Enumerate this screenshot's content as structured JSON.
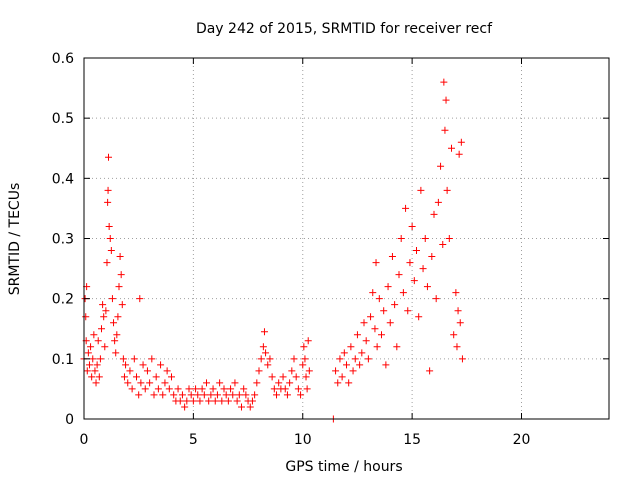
{
  "chart_data": {
    "type": "scatter",
    "title": "Day 242 of 2015, SRMTID for receiver recf",
    "xlabel": "GPS time / hours",
    "ylabel": "SRMTID / TECUs",
    "xlim": [
      0,
      24
    ],
    "ylim": [
      0,
      0.6
    ],
    "xticks": [
      0,
      5,
      10,
      15,
      20
    ],
    "yticks": [
      0,
      0.1,
      0.2,
      0.3,
      0.4,
      0.5,
      0.6
    ],
    "x_tick_labels": [
      "0",
      "5",
      "10",
      "15",
      "20"
    ],
    "y_tick_labels": [
      "0",
      "0.1",
      "0.2",
      "0.3",
      "0.4",
      "0.5",
      "0.6"
    ],
    "grid": true,
    "marker": "+",
    "color": "#ff0000",
    "series": [
      {
        "name": "SRMTID",
        "points": [
          [
            0.0,
            0.1
          ],
          [
            0.05,
            0.2
          ],
          [
            0.08,
            0.17
          ],
          [
            0.1,
            0.13
          ],
          [
            0.12,
            0.22
          ],
          [
            0.15,
            0.08
          ],
          [
            0.2,
            0.11
          ],
          [
            0.25,
            0.09
          ],
          [
            0.3,
            0.12
          ],
          [
            0.35,
            0.07
          ],
          [
            0.4,
            0.1
          ],
          [
            0.45,
            0.14
          ],
          [
            0.5,
            0.08
          ],
          [
            0.55,
            0.06
          ],
          [
            0.6,
            0.09
          ],
          [
            0.65,
            0.13
          ],
          [
            0.7,
            0.07
          ],
          [
            0.75,
            0.1
          ],
          [
            0.8,
            0.15
          ],
          [
            0.85,
            0.19
          ],
          [
            0.9,
            0.17
          ],
          [
            0.95,
            0.12
          ],
          [
            1.0,
            0.18
          ],
          [
            1.05,
            0.26
          ],
          [
            1.08,
            0.36
          ],
          [
            1.1,
            0.38
          ],
          [
            1.12,
            0.435
          ],
          [
            1.15,
            0.32
          ],
          [
            1.2,
            0.3
          ],
          [
            1.25,
            0.28
          ],
          [
            1.3,
            0.2
          ],
          [
            1.35,
            0.16
          ],
          [
            1.4,
            0.13
          ],
          [
            1.45,
            0.11
          ],
          [
            1.5,
            0.14
          ],
          [
            1.55,
            0.17
          ],
          [
            1.6,
            0.22
          ],
          [
            1.65,
            0.27
          ],
          [
            1.7,
            0.24
          ],
          [
            1.75,
            0.19
          ],
          [
            1.8,
            0.1
          ],
          [
            1.85,
            0.07
          ],
          [
            1.9,
            0.09
          ],
          [
            2.0,
            0.06
          ],
          [
            2.1,
            0.08
          ],
          [
            2.2,
            0.05
          ],
          [
            2.3,
            0.1
          ],
          [
            2.4,
            0.07
          ],
          [
            2.5,
            0.04
          ],
          [
            2.55,
            0.2
          ],
          [
            2.6,
            0.06
          ],
          [
            2.7,
            0.09
          ],
          [
            2.8,
            0.05
          ],
          [
            2.9,
            0.08
          ],
          [
            3.0,
            0.06
          ],
          [
            3.1,
            0.1
          ],
          [
            3.2,
            0.04
          ],
          [
            3.3,
            0.07
          ],
          [
            3.4,
            0.05
          ],
          [
            3.5,
            0.09
          ],
          [
            3.6,
            0.04
          ],
          [
            3.7,
            0.06
          ],
          [
            3.8,
            0.08
          ],
          [
            3.9,
            0.05
          ],
          [
            4.0,
            0.07
          ],
          [
            4.1,
            0.04
          ],
          [
            4.2,
            0.03
          ],
          [
            4.3,
            0.05
          ],
          [
            4.4,
            0.03
          ],
          [
            4.5,
            0.04
          ],
          [
            4.6,
            0.02
          ],
          [
            4.7,
            0.03
          ],
          [
            4.8,
            0.05
          ],
          [
            4.9,
            0.04
          ],
          [
            5.0,
            0.03
          ],
          [
            5.1,
            0.05
          ],
          [
            5.2,
            0.04
          ],
          [
            5.3,
            0.03
          ],
          [
            5.4,
            0.05
          ],
          [
            5.5,
            0.04
          ],
          [
            5.6,
            0.06
          ],
          [
            5.7,
            0.03
          ],
          [
            5.8,
            0.04
          ],
          [
            5.9,
            0.05
          ],
          [
            6.0,
            0.03
          ],
          [
            6.1,
            0.04
          ],
          [
            6.2,
            0.06
          ],
          [
            6.3,
            0.03
          ],
          [
            6.4,
            0.05
          ],
          [
            6.5,
            0.04
          ],
          [
            6.6,
            0.03
          ],
          [
            6.7,
            0.05
          ],
          [
            6.8,
            0.04
          ],
          [
            6.9,
            0.06
          ],
          [
            7.0,
            0.03
          ],
          [
            7.1,
            0.04
          ],
          [
            7.2,
            0.02
          ],
          [
            7.3,
            0.05
          ],
          [
            7.4,
            0.04
          ],
          [
            7.5,
            0.03
          ],
          [
            7.6,
            0.02
          ],
          [
            7.7,
            0.03
          ],
          [
            7.8,
            0.04
          ],
          [
            7.9,
            0.06
          ],
          [
            8.0,
            0.08
          ],
          [
            8.1,
            0.1
          ],
          [
            8.2,
            0.12
          ],
          [
            8.25,
            0.145
          ],
          [
            8.3,
            0.11
          ],
          [
            8.4,
            0.09
          ],
          [
            8.5,
            0.1
          ],
          [
            8.6,
            0.07
          ],
          [
            8.7,
            0.05
          ],
          [
            8.8,
            0.04
          ],
          [
            8.9,
            0.06
          ],
          [
            9.0,
            0.05
          ],
          [
            9.1,
            0.07
          ],
          [
            9.2,
            0.05
          ],
          [
            9.3,
            0.04
          ],
          [
            9.4,
            0.06
          ],
          [
            9.5,
            0.08
          ],
          [
            9.6,
            0.1
          ],
          [
            9.7,
            0.07
          ],
          [
            9.8,
            0.05
          ],
          [
            9.9,
            0.04
          ],
          [
            10.0,
            0.09
          ],
          [
            10.05,
            0.12
          ],
          [
            10.1,
            0.1
          ],
          [
            10.15,
            0.07
          ],
          [
            10.2,
            0.05
          ],
          [
            10.25,
            0.13
          ],
          [
            10.3,
            0.08
          ],
          [
            11.4,
            0.0
          ],
          [
            11.5,
            0.08
          ],
          [
            11.6,
            0.06
          ],
          [
            11.7,
            0.1
          ],
          [
            11.8,
            0.07
          ],
          [
            11.9,
            0.11
          ],
          [
            12.0,
            0.09
          ],
          [
            12.1,
            0.06
          ],
          [
            12.2,
            0.12
          ],
          [
            12.3,
            0.08
          ],
          [
            12.4,
            0.1
          ],
          [
            12.5,
            0.14
          ],
          [
            12.6,
            0.09
          ],
          [
            12.7,
            0.11
          ],
          [
            12.8,
            0.16
          ],
          [
            12.9,
            0.13
          ],
          [
            13.0,
            0.1
          ],
          [
            13.1,
            0.17
          ],
          [
            13.2,
            0.21
          ],
          [
            13.3,
            0.15
          ],
          [
            13.35,
            0.26
          ],
          [
            13.4,
            0.12
          ],
          [
            13.5,
            0.2
          ],
          [
            13.6,
            0.14
          ],
          [
            13.7,
            0.18
          ],
          [
            13.8,
            0.09
          ],
          [
            13.9,
            0.22
          ],
          [
            14.0,
            0.16
          ],
          [
            14.1,
            0.27
          ],
          [
            14.2,
            0.19
          ],
          [
            14.3,
            0.12
          ],
          [
            14.4,
            0.24
          ],
          [
            14.5,
            0.3
          ],
          [
            14.6,
            0.21
          ],
          [
            14.7,
            0.35
          ],
          [
            14.8,
            0.18
          ],
          [
            14.9,
            0.26
          ],
          [
            15.0,
            0.32
          ],
          [
            15.1,
            0.23
          ],
          [
            15.2,
            0.28
          ],
          [
            15.3,
            0.17
          ],
          [
            15.4,
            0.38
          ],
          [
            15.5,
            0.25
          ],
          [
            15.6,
            0.3
          ],
          [
            15.7,
            0.22
          ],
          [
            15.8,
            0.08
          ],
          [
            15.9,
            0.27
          ],
          [
            16.0,
            0.34
          ],
          [
            16.1,
            0.2
          ],
          [
            16.2,
            0.36
          ],
          [
            16.3,
            0.42
          ],
          [
            16.4,
            0.29
          ],
          [
            16.45,
            0.56
          ],
          [
            16.5,
            0.48
          ],
          [
            16.55,
            0.53
          ],
          [
            16.6,
            0.38
          ],
          [
            16.7,
            0.3
          ],
          [
            16.8,
            0.45
          ],
          [
            16.9,
            0.14
          ],
          [
            17.0,
            0.21
          ],
          [
            17.05,
            0.12
          ],
          [
            17.1,
            0.18
          ],
          [
            17.15,
            0.44
          ],
          [
            17.2,
            0.16
          ],
          [
            17.25,
            0.46
          ],
          [
            17.3,
            0.1
          ]
        ]
      }
    ]
  }
}
